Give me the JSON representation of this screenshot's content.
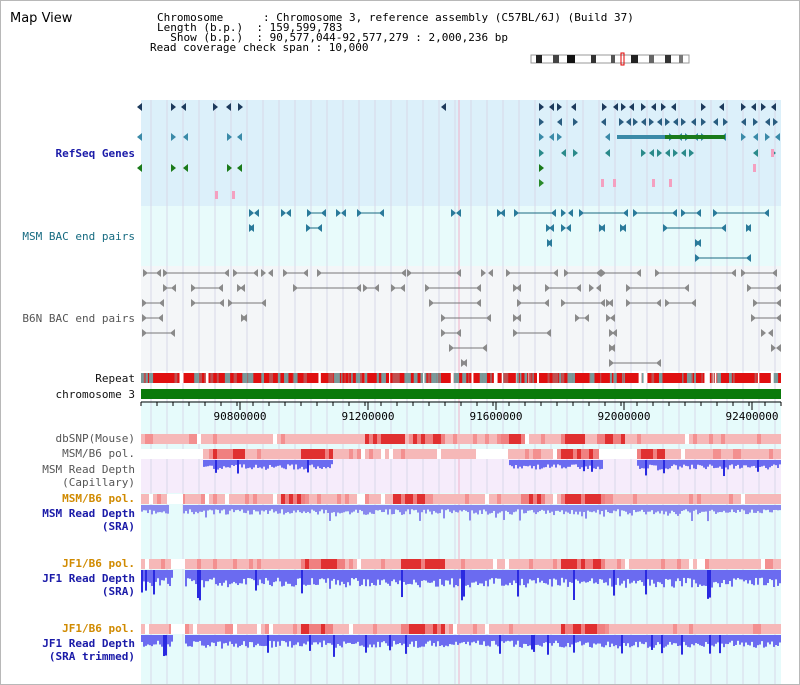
{
  "title": "Map View",
  "info": {
    "chromosome": "Chromosome      : Chromosome 3, reference assembly (C57BL/6J) (Build 37)",
    "length": "Length (b.p.)  : 159,599,783",
    "show": "  Show (b.p.)  : 90,577,044-92,577,279 : 2,000,236 bp",
    "span": "Read coverage check span : 10,000"
  },
  "tracks": {
    "refseq": "RefSeq Genes",
    "msm_bac": "MSM BAC end pairs",
    "b6n_bac": "B6N BAC end pairs",
    "repeat": "Repeat",
    "chromosome": "chromosome 3",
    "dbsnp": "dbSNP(Mouse)",
    "msm_b6_pol_1": "MSM/B6 pol.",
    "msm_read_depth_cap_1": "MSM Read Depth",
    "msm_read_depth_cap_2": "(Capillary)",
    "msm_b6_pol_2": "MSM/B6 pol.",
    "msm_read_depth_sra_1": "MSM Read Depth",
    "msm_read_depth_sra_2": "(SRA)",
    "jf1_b6_pol_1": "JF1/B6 pol.",
    "jf1_read_depth_sra_1": "JF1 Read Depth",
    "jf1_read_depth_sra_2": "(SRA)",
    "jf1_b6_pol_2": "JF1/B6 pol.",
    "jf1_read_depth_trim_1": "JF1 Read Depth",
    "jf1_read_depth_trim_2": "(SRA trimmed)"
  },
  "axis": {
    "ticks": [
      "90800000",
      "91200000",
      "91600000",
      "92000000",
      "92400000"
    ]
  },
  "colors": {
    "refseq_bg": "#dcf0fa",
    "bac_bg": "#e8fbfb",
    "b6n_bg": "#f4f6f8",
    "lower_bg": "#e6fbfb",
    "read_depth_bar": "#6b6bf0",
    "read_depth_dark": "#2a2ae0",
    "chromosome_bar": "#0a7a0a",
    "repeat_red": "#e01010",
    "pol_pink": "#f6b8b8",
    "pol_red": "#e03030",
    "label_blue": "#1a1aa8",
    "label_orange": "#d08a00"
  }
}
